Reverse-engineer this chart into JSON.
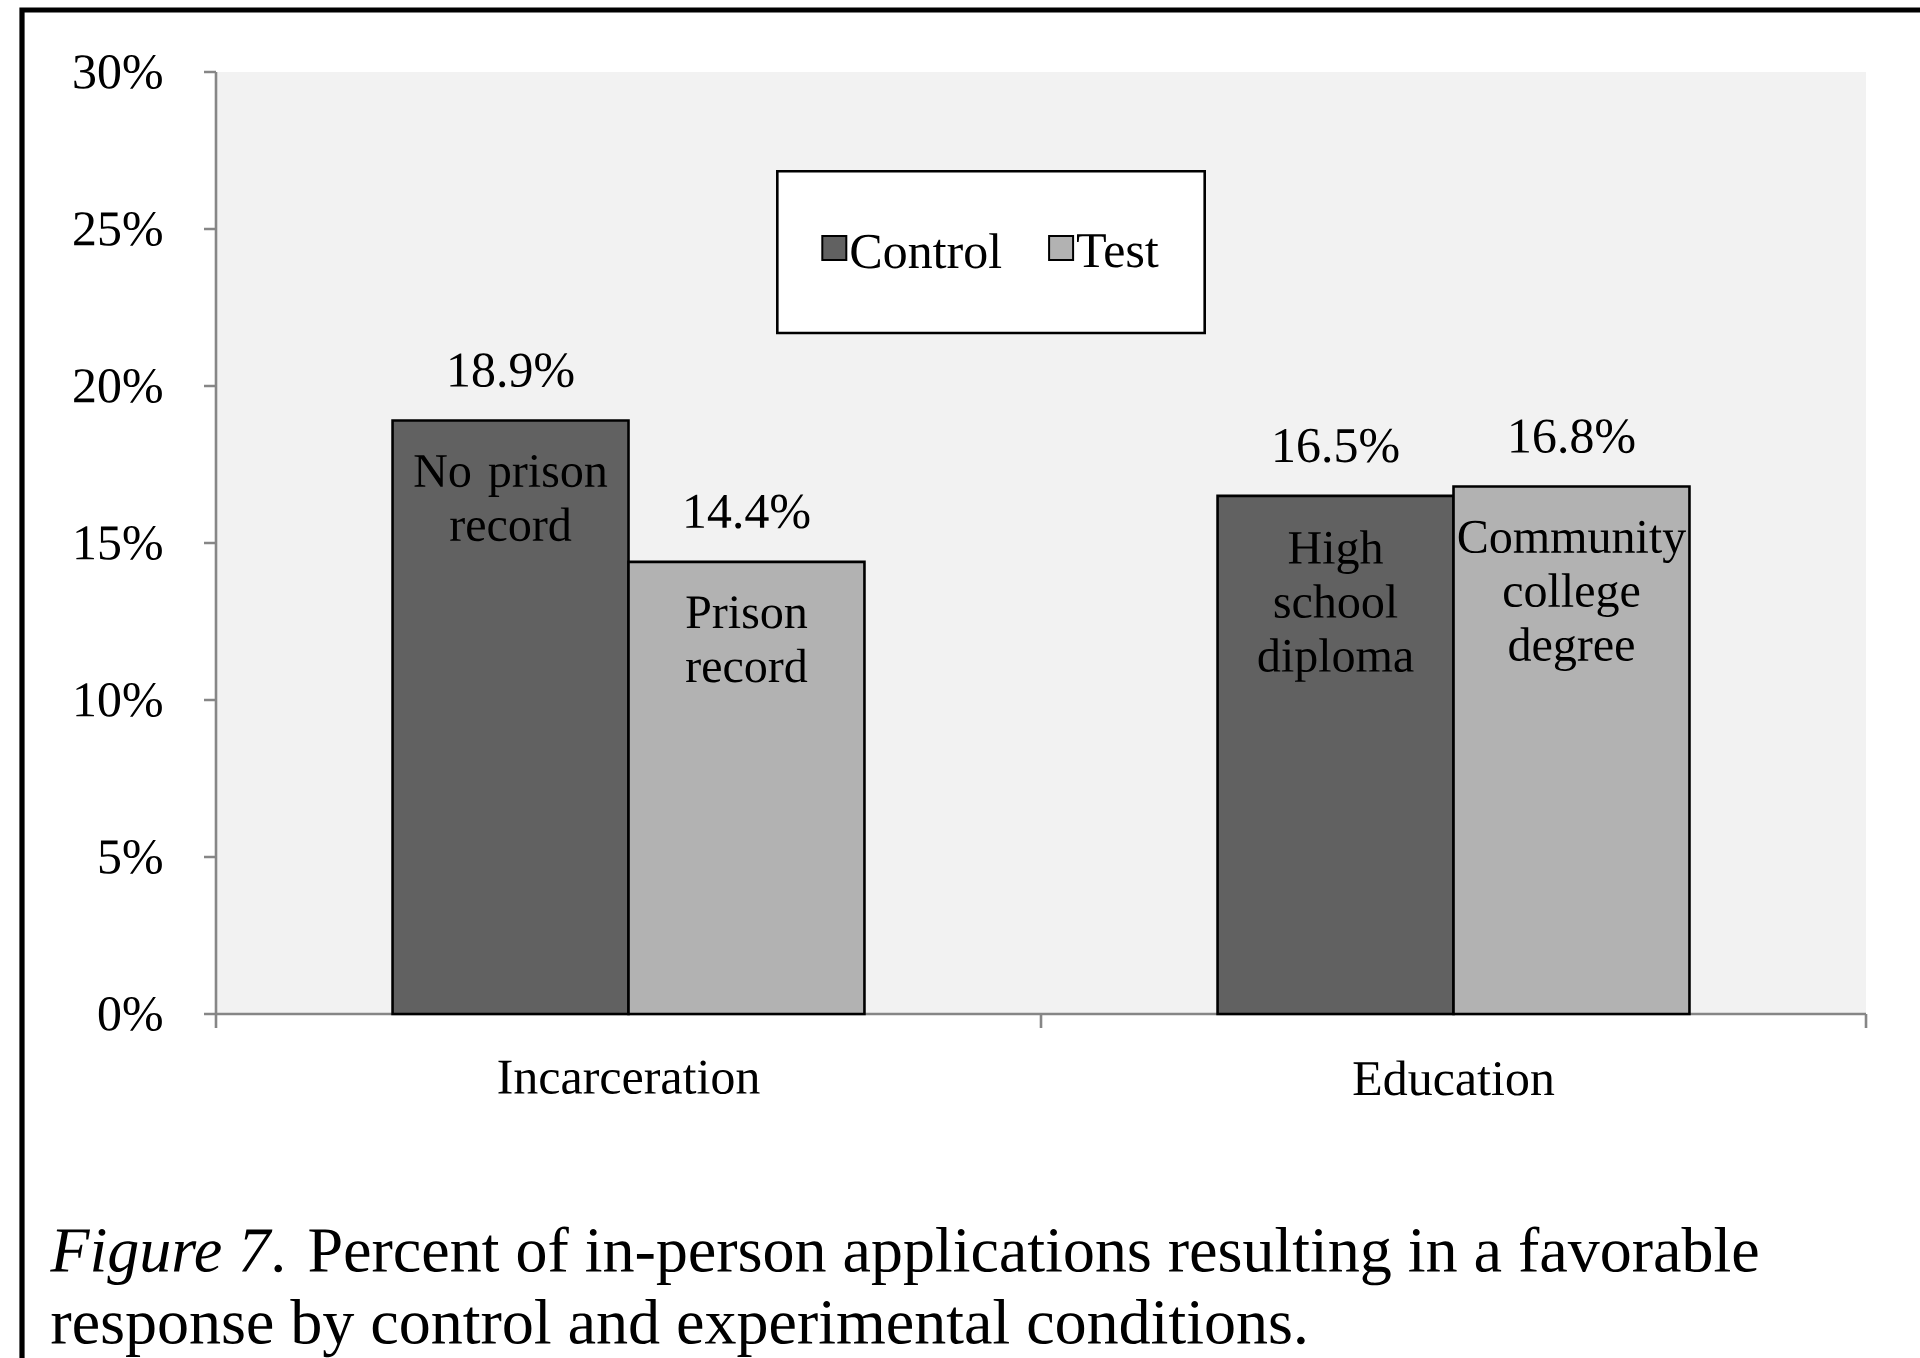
{
  "chart_data": {
    "type": "bar",
    "categories": [
      "Incarceration",
      "Education"
    ],
    "series": [
      {
        "name": "Control",
        "color": "#616161",
        "values": [
          18.9,
          16.5
        ],
        "value_labels": [
          "18.9%",
          "16.5%"
        ]
      },
      {
        "name": "Test",
        "color": "#b2b2b2",
        "values": [
          14.4,
          16.8
        ],
        "value_labels": [
          "14.4%",
          "16.8%"
        ]
      }
    ],
    "ylim": [
      0,
      30
    ],
    "yticks": [
      {
        "value": 0,
        "label": "0%"
      },
      {
        "value": 5,
        "label": "5%"
      },
      {
        "value": 10,
        "label": "10%"
      },
      {
        "value": 15,
        "label": "15%"
      },
      {
        "value": 20,
        "label": "20%"
      },
      {
        "value": 25,
        "label": "25%"
      },
      {
        "value": 30,
        "label": "30%"
      }
    ],
    "legend": "top",
    "annotations": [
      {
        "text": "No prison record",
        "x": "Incarceration",
        "y": 18.9
      },
      {
        "text": "Prison record",
        "x": "Incarceration",
        "y": 14.4
      },
      {
        "text": "High school diploma",
        "x": "Education",
        "y": 16.5
      },
      {
        "text": "Community college degree",
        "x": "Education",
        "y": 16.8
      },
      "*Figure 7*. Percent of in-person applications resulting in a favorable response by control and experimental conditions."
    ]
  }
}
